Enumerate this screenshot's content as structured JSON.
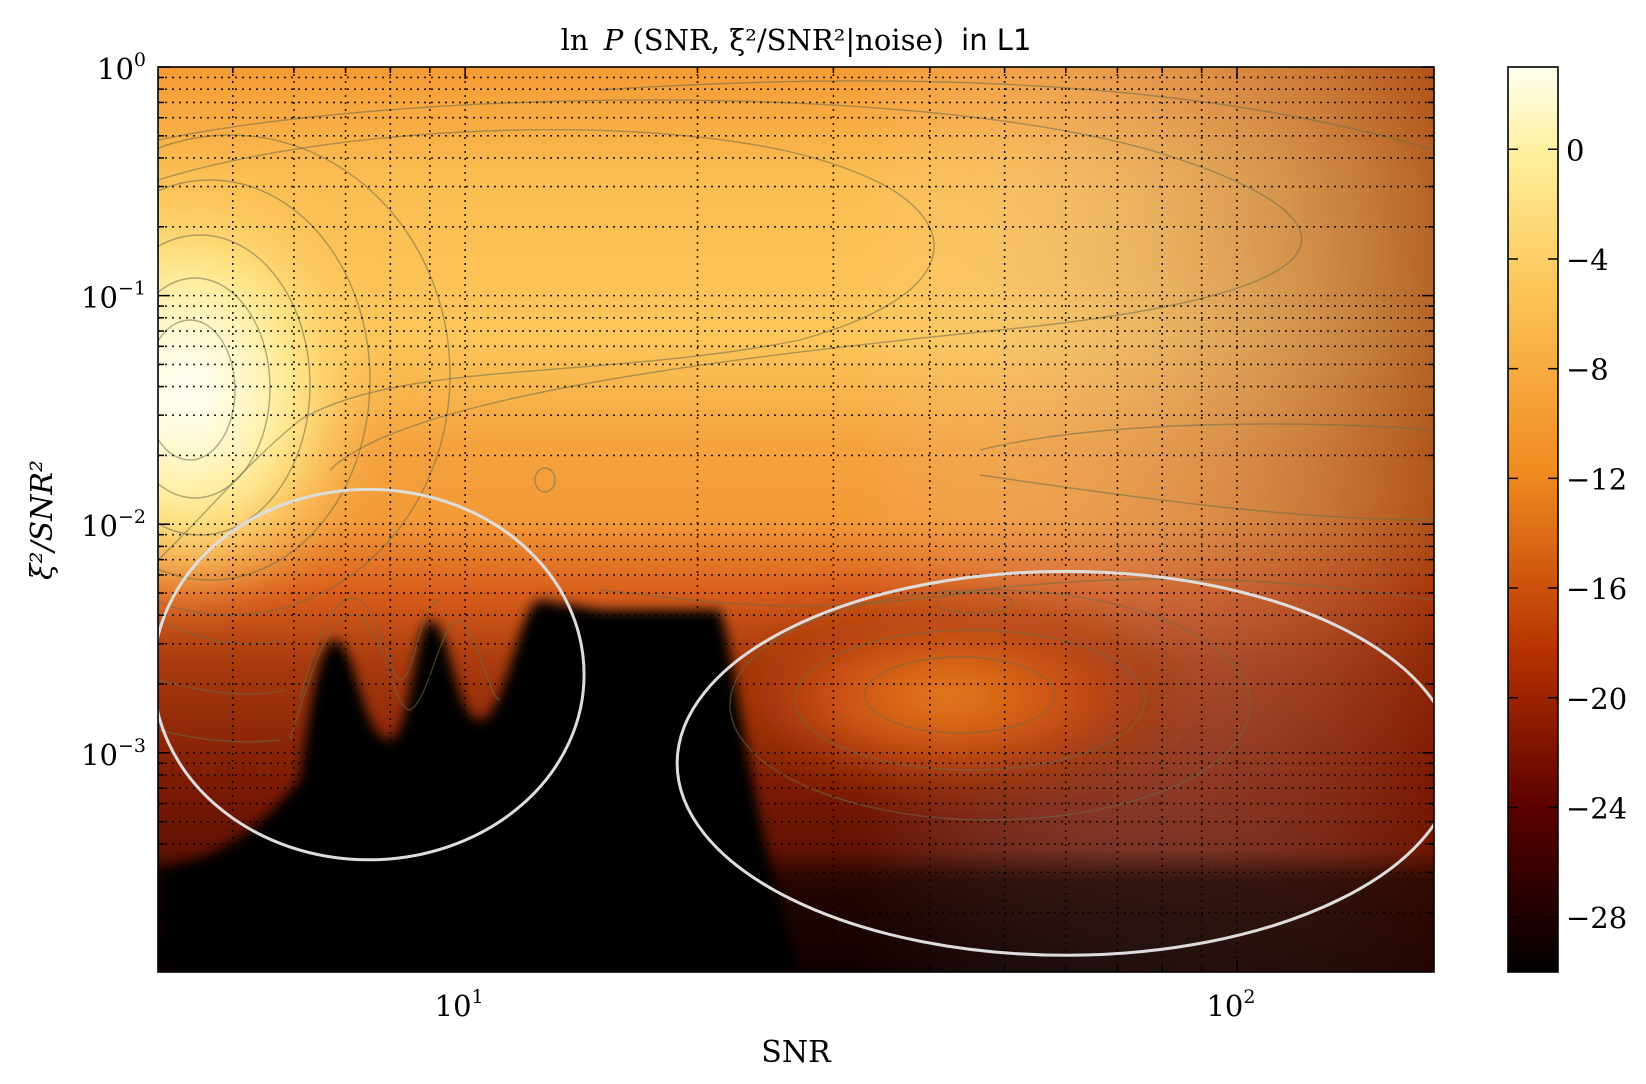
{
  "chart_data": {
    "type": "heatmap",
    "title": {
      "math_ln": "ln",
      "math_P": "P",
      "math_args": "(SNR, ξ²/SNR²|noise)",
      "suffix": "in L1"
    },
    "xlabel": "SNR",
    "ylabel": "ξ²/SNR²",
    "x_scale": "log",
    "y_scale": "log",
    "xlim": [
      4,
      180
    ],
    "ylim": [
      0.00011,
      1
    ],
    "grid": true,
    "x_ticks": [
      {
        "value": 10,
        "base": "10",
        "exp": "1"
      },
      {
        "value": 100,
        "base": "10",
        "exp": "2"
      }
    ],
    "y_ticks": [
      {
        "value": 0.001,
        "base": "10",
        "exp": "−3"
      },
      {
        "value": 0.01,
        "base": "10",
        "exp": "−2"
      },
      {
        "value": 0.1,
        "base": "10",
        "exp": "−1"
      },
      {
        "value": 1,
        "base": "10",
        "exp": "0"
      }
    ],
    "colorbar": {
      "min": -30,
      "max": 3,
      "ticks": [
        {
          "value": 0,
          "label": "0"
        },
        {
          "value": -4,
          "label": "−4"
        },
        {
          "value": -8,
          "label": "−8"
        },
        {
          "value": -12,
          "label": "−12"
        },
        {
          "value": -16,
          "label": "−16"
        },
        {
          "value": -20,
          "label": "−20"
        },
        {
          "value": -24,
          "label": "−24"
        },
        {
          "value": -28,
          "label": "−28"
        }
      ],
      "colormap": "afmhot"
    },
    "regions": [
      {
        "peak_snr": 4.5,
        "peak_ratio": 0.04,
        "peak_value": 1
      },
      {
        "snr_range": [
          4,
          14
        ],
        "ratio_below": 0.005,
        "value": -30
      },
      {
        "snr_range": [
          14,
          28
        ],
        "ratio_below": 0.0035,
        "value": -30
      },
      {
        "peak_snr": 52,
        "peak_ratio": 0.0018,
        "peak_value": -15
      }
    ],
    "annotations": [
      {
        "shape": "ellipse",
        "center_snr": 7.5,
        "center_ratio": 0.0022,
        "color": "#dddddd"
      },
      {
        "shape": "ellipse",
        "center_snr": 60,
        "center_ratio": 0.0009,
        "color": "#dddddd"
      }
    ]
  }
}
